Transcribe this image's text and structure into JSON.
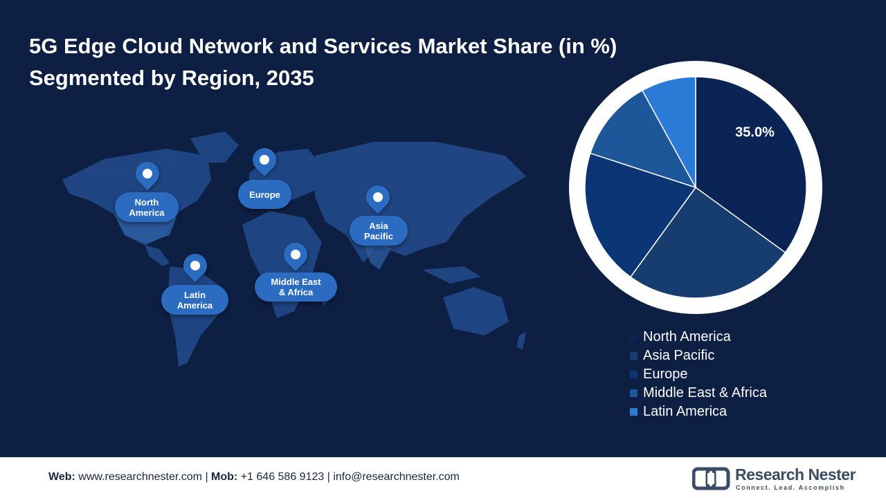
{
  "title_line1": "5G Edge Cloud Network and Services Market Share (in %)",
  "title_line2": "Segmented by Region, 2035",
  "map": {
    "regions": [
      {
        "key": "north_america",
        "label": "North\nAmerica"
      },
      {
        "key": "europe",
        "label": "Europe"
      },
      {
        "key": "asia_pacific",
        "label": "Asia\nPacific"
      },
      {
        "key": "latin_america",
        "label": "Latin\nAmerica"
      },
      {
        "key": "mea",
        "label": "Middle East\n& Africa"
      }
    ]
  },
  "chart_data": {
    "type": "pie",
    "title": "5G Edge Cloud Network and Services Market Share (in %) Segmented by Region, 2035",
    "categories": [
      "North America",
      "Asia Pacific",
      "Europe",
      "Middle East & Africa",
      "Latin America"
    ],
    "values": [
      35.0,
      25.0,
      20.0,
      12.0,
      8.0
    ],
    "colors": [
      "#0a2455",
      "#163d6e",
      "#0b3574",
      "#1d5799",
      "#2a7ad6"
    ],
    "data_labels": [
      "35.0%",
      "",
      "",
      "",
      ""
    ],
    "start_angle_deg": 0,
    "direction": "clockwise",
    "legend_position": "bottom-right"
  },
  "footer": {
    "web_label": "Web:",
    "web_value": "www.researchnester.com",
    "mob_label": "Mob:",
    "mob_value": "+1 646 586 9123",
    "email_value": "info@researchnester.com",
    "separator": " | "
  },
  "logo": {
    "brand": "Research Nester",
    "tagline": "Connect. Lead. Accomplish"
  }
}
